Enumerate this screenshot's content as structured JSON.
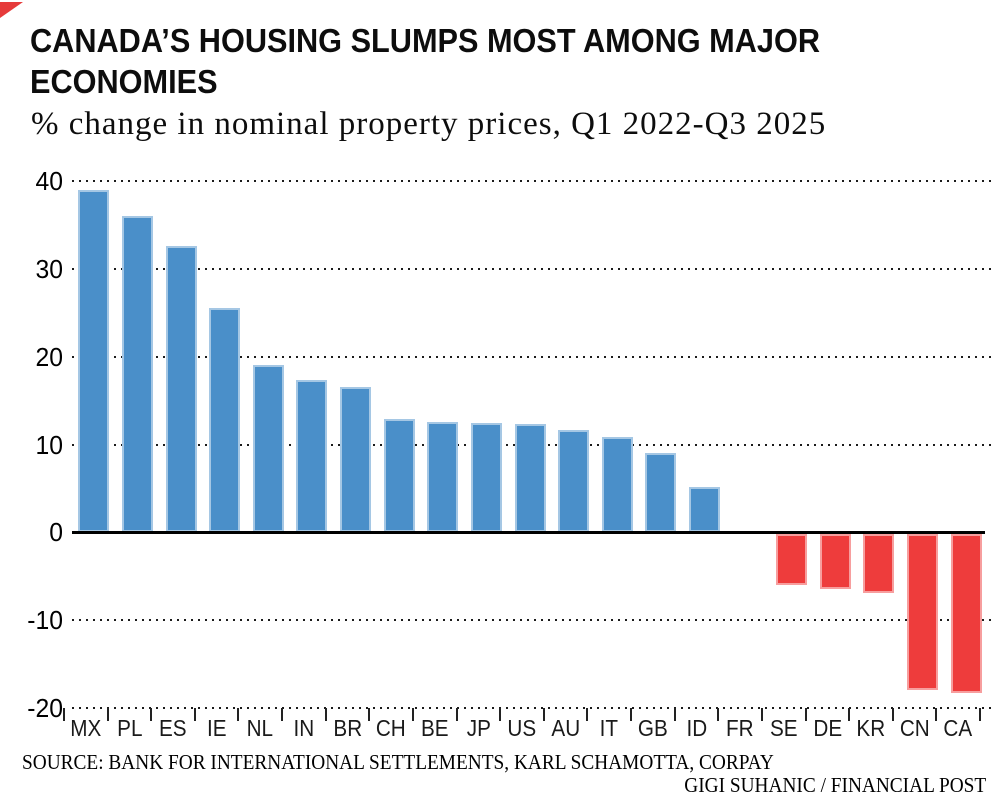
{
  "header": {
    "title_line1": "CANADA’S HOUSING SLUMPS MOST AMONG MAJOR",
    "title_line2": "ECONOMIES",
    "subtitle": "% change in nominal property prices, Q1 2022-Q3 2025"
  },
  "chart_data": {
    "type": "bar",
    "title": "CANADA'S HOUSING SLUMPS MOST AMONG MAJOR ECONOMIES",
    "subtitle": "% change in nominal property prices, Q1 2022-Q3 2025",
    "categories": [
      "MX",
      "PL",
      "ES",
      "IE",
      "NL",
      "IN",
      "BR",
      "CH",
      "BE",
      "JP",
      "US",
      "AU",
      "IT",
      "GB",
      "ID",
      "FR",
      "SE",
      "DE",
      "KR",
      "CN",
      "CA"
    ],
    "values": [
      39,
      36,
      32.6,
      25.5,
      19,
      17.4,
      16.5,
      12.9,
      12.6,
      12.5,
      12.3,
      11.6,
      10.9,
      9,
      5.2,
      0,
      -6,
      -6.4,
      -6.9,
      -17.9,
      -18.3
    ],
    "xlabel": "",
    "ylabel": "% change",
    "ylim": [
      -20,
      40
    ],
    "yticks": [
      40,
      30,
      20,
      10,
      0,
      -10,
      -20
    ],
    "grid": "dotted-horizontal",
    "legend": "none",
    "positive_color": "#4a8fc9",
    "negative_color": "#ee3c3c",
    "axis_color": "#000000"
  },
  "footer": {
    "source": "SOURCE: BANK FOR INTERNATIONAL SETTLEMENTS, KARL SCHAMOTTA, CORPAY",
    "credit": "GIGI SUHANIC / FINANCIAL POST"
  },
  "colors": {
    "background": "#ffffff",
    "text": "#0d0d0d",
    "corner_mark": "#e63b3b"
  }
}
